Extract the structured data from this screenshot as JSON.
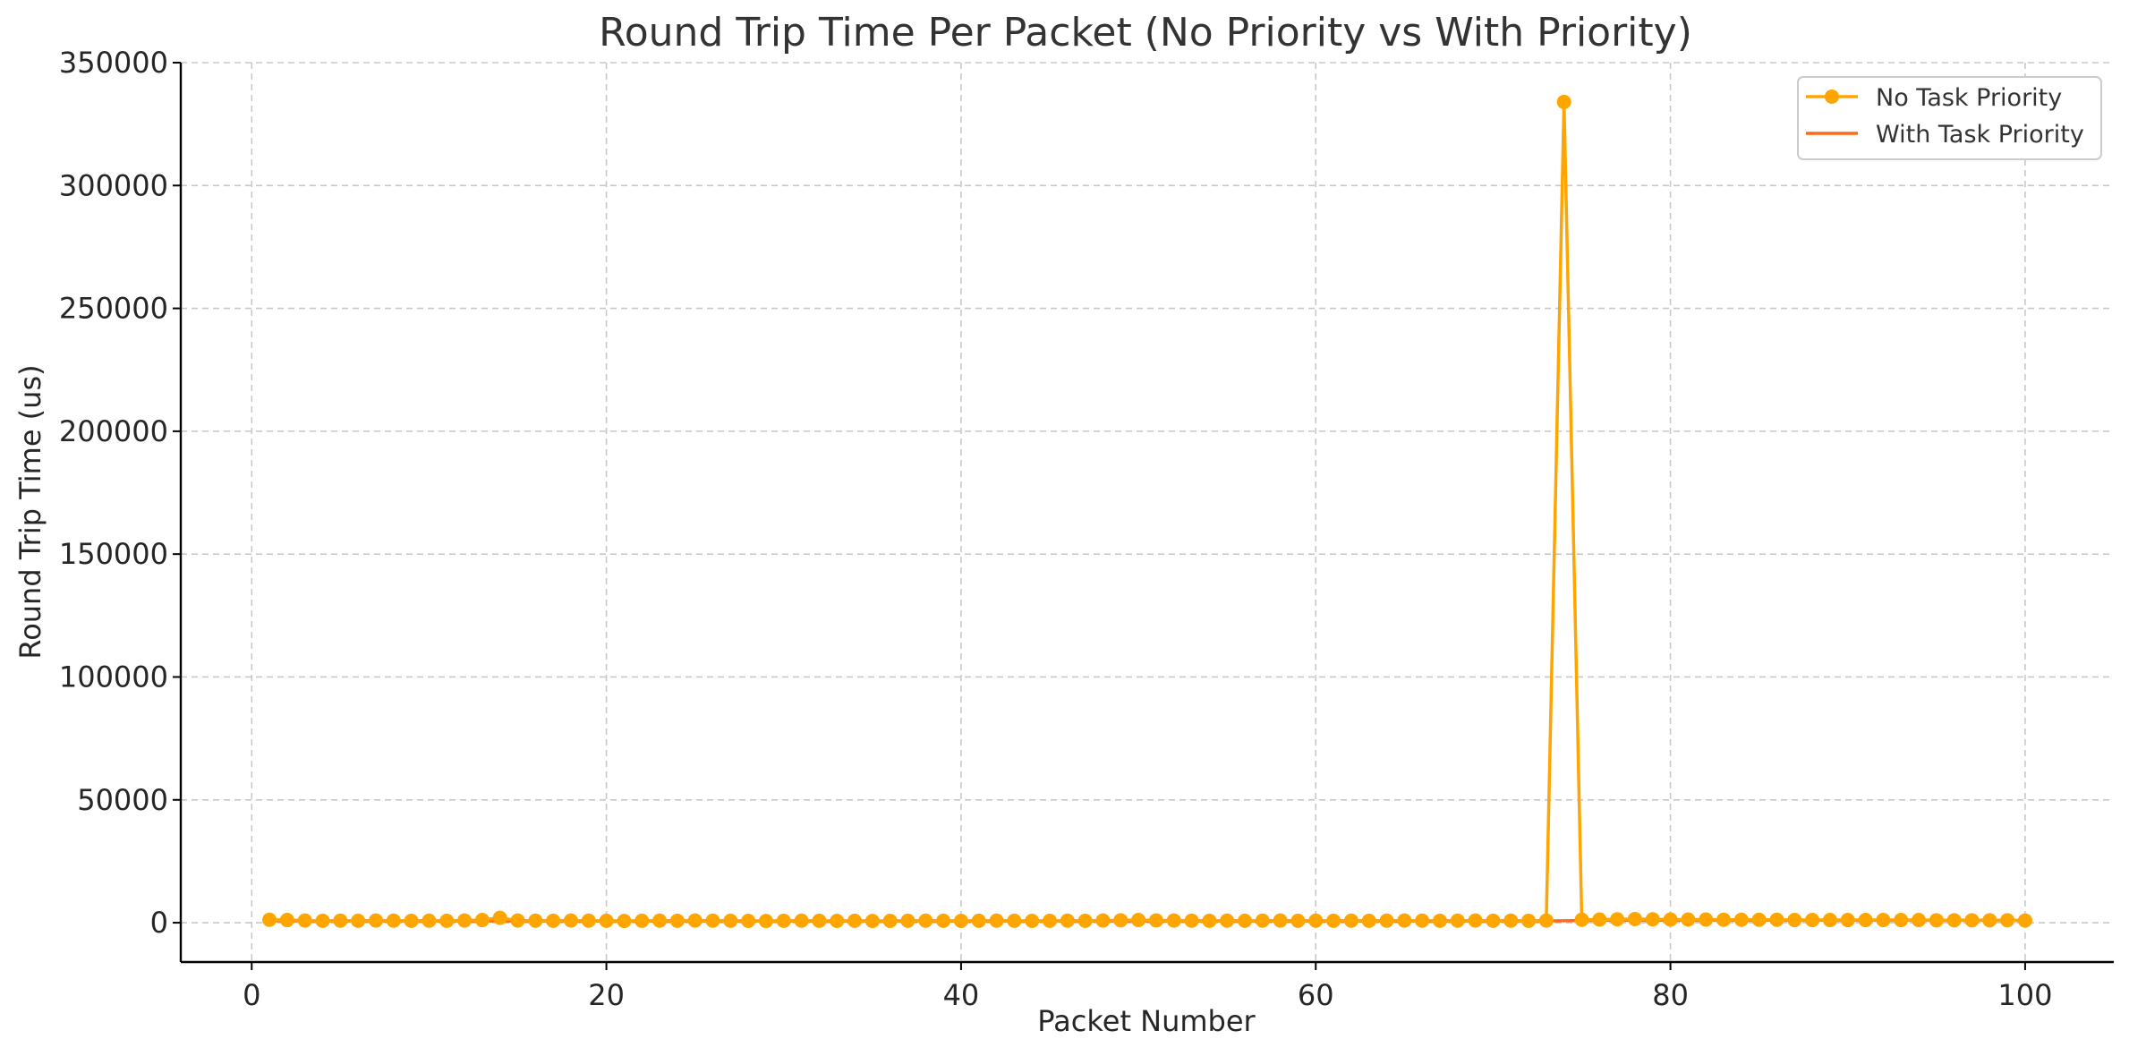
{
  "colors": {
    "no_priority": "#FFA500",
    "with_priority": "#FF6A1A",
    "text": "#262626",
    "grid": "#c8c8c8"
  },
  "chart_data": {
    "type": "line",
    "title": "Round Trip Time Per Packet (No Priority vs With Priority)",
    "xlabel": "Packet Number",
    "ylabel": "Round Trip Time (us)",
    "xlim": [
      -4,
      105
    ],
    "ylim": [
      -16000,
      350000
    ],
    "xticks": [
      0,
      20,
      40,
      60,
      80,
      100
    ],
    "yticks": [
      0,
      50000,
      100000,
      150000,
      200000,
      250000,
      300000,
      350000
    ],
    "grid": true,
    "legend_position": "top-right",
    "x": [
      1,
      2,
      3,
      4,
      5,
      6,
      7,
      8,
      9,
      10,
      11,
      12,
      13,
      14,
      15,
      16,
      17,
      18,
      19,
      20,
      21,
      22,
      23,
      24,
      25,
      26,
      27,
      28,
      29,
      30,
      31,
      32,
      33,
      34,
      35,
      36,
      37,
      38,
      39,
      40,
      41,
      42,
      43,
      44,
      45,
      46,
      47,
      48,
      49,
      50,
      51,
      52,
      53,
      54,
      55,
      56,
      57,
      58,
      59,
      60,
      61,
      62,
      63,
      64,
      65,
      66,
      67,
      68,
      69,
      70,
      71,
      72,
      73,
      74,
      75,
      76,
      77,
      78,
      79,
      80,
      81,
      82,
      83,
      84,
      85,
      86,
      87,
      88,
      89,
      90,
      91,
      92,
      93,
      94,
      95,
      96,
      97,
      98,
      99,
      100
    ],
    "series": [
      {
        "name": "No Task Priority",
        "marker": "circle",
        "values": [
          1200,
          1100,
          900,
          800,
          850,
          800,
          900,
          850,
          800,
          850,
          800,
          900,
          1100,
          2000,
          900,
          850,
          800,
          900,
          850,
          800,
          700,
          800,
          850,
          800,
          900,
          850,
          800,
          750,
          700,
          800,
          850,
          800,
          750,
          800,
          700,
          750,
          800,
          850,
          800,
          750,
          800,
          850,
          800,
          750,
          800,
          850,
          800,
          900,
          1000,
          1100,
          950,
          900,
          850,
          800,
          850,
          800,
          850,
          900,
          800,
          850,
          800,
          850,
          800,
          850,
          900,
          850,
          800,
          850,
          900,
          800,
          850,
          800,
          900,
          334000,
          1200,
          1300,
          1400,
          1500,
          1400,
          1300,
          1300,
          1300,
          1200,
          1200,
          1200,
          1200,
          1100,
          1100,
          1100,
          1100,
          1100,
          1100,
          1100,
          1100,
          1000,
          1000,
          1000,
          1000,
          1000,
          900
        ]
      },
      {
        "name": "With Task Priority",
        "marker": "none",
        "values": [
          800,
          750,
          700,
          700,
          700,
          700,
          700,
          700,
          700,
          700,
          700,
          700,
          700,
          700,
          700,
          700,
          700,
          700,
          700,
          700,
          700,
          700,
          700,
          700,
          700,
          700,
          700,
          700,
          700,
          700,
          700,
          700,
          700,
          700,
          700,
          700,
          700,
          700,
          700,
          700,
          700,
          700,
          700,
          700,
          700,
          700,
          700,
          700,
          700,
          700,
          700,
          700,
          700,
          700,
          700,
          700,
          700,
          700,
          700,
          700,
          700,
          700,
          700,
          700,
          700,
          700,
          700,
          700,
          700,
          700,
          700,
          700,
          700,
          800,
          900,
          1000,
          1000,
          1000,
          1000,
          1000,
          1000,
          1000,
          1000,
          1000,
          1000,
          1000,
          1000,
          1000,
          1000,
          1000,
          1000,
          1000,
          1000,
          1000,
          1000,
          1000,
          1000,
          1000,
          1000,
          900
        ]
      }
    ]
  }
}
